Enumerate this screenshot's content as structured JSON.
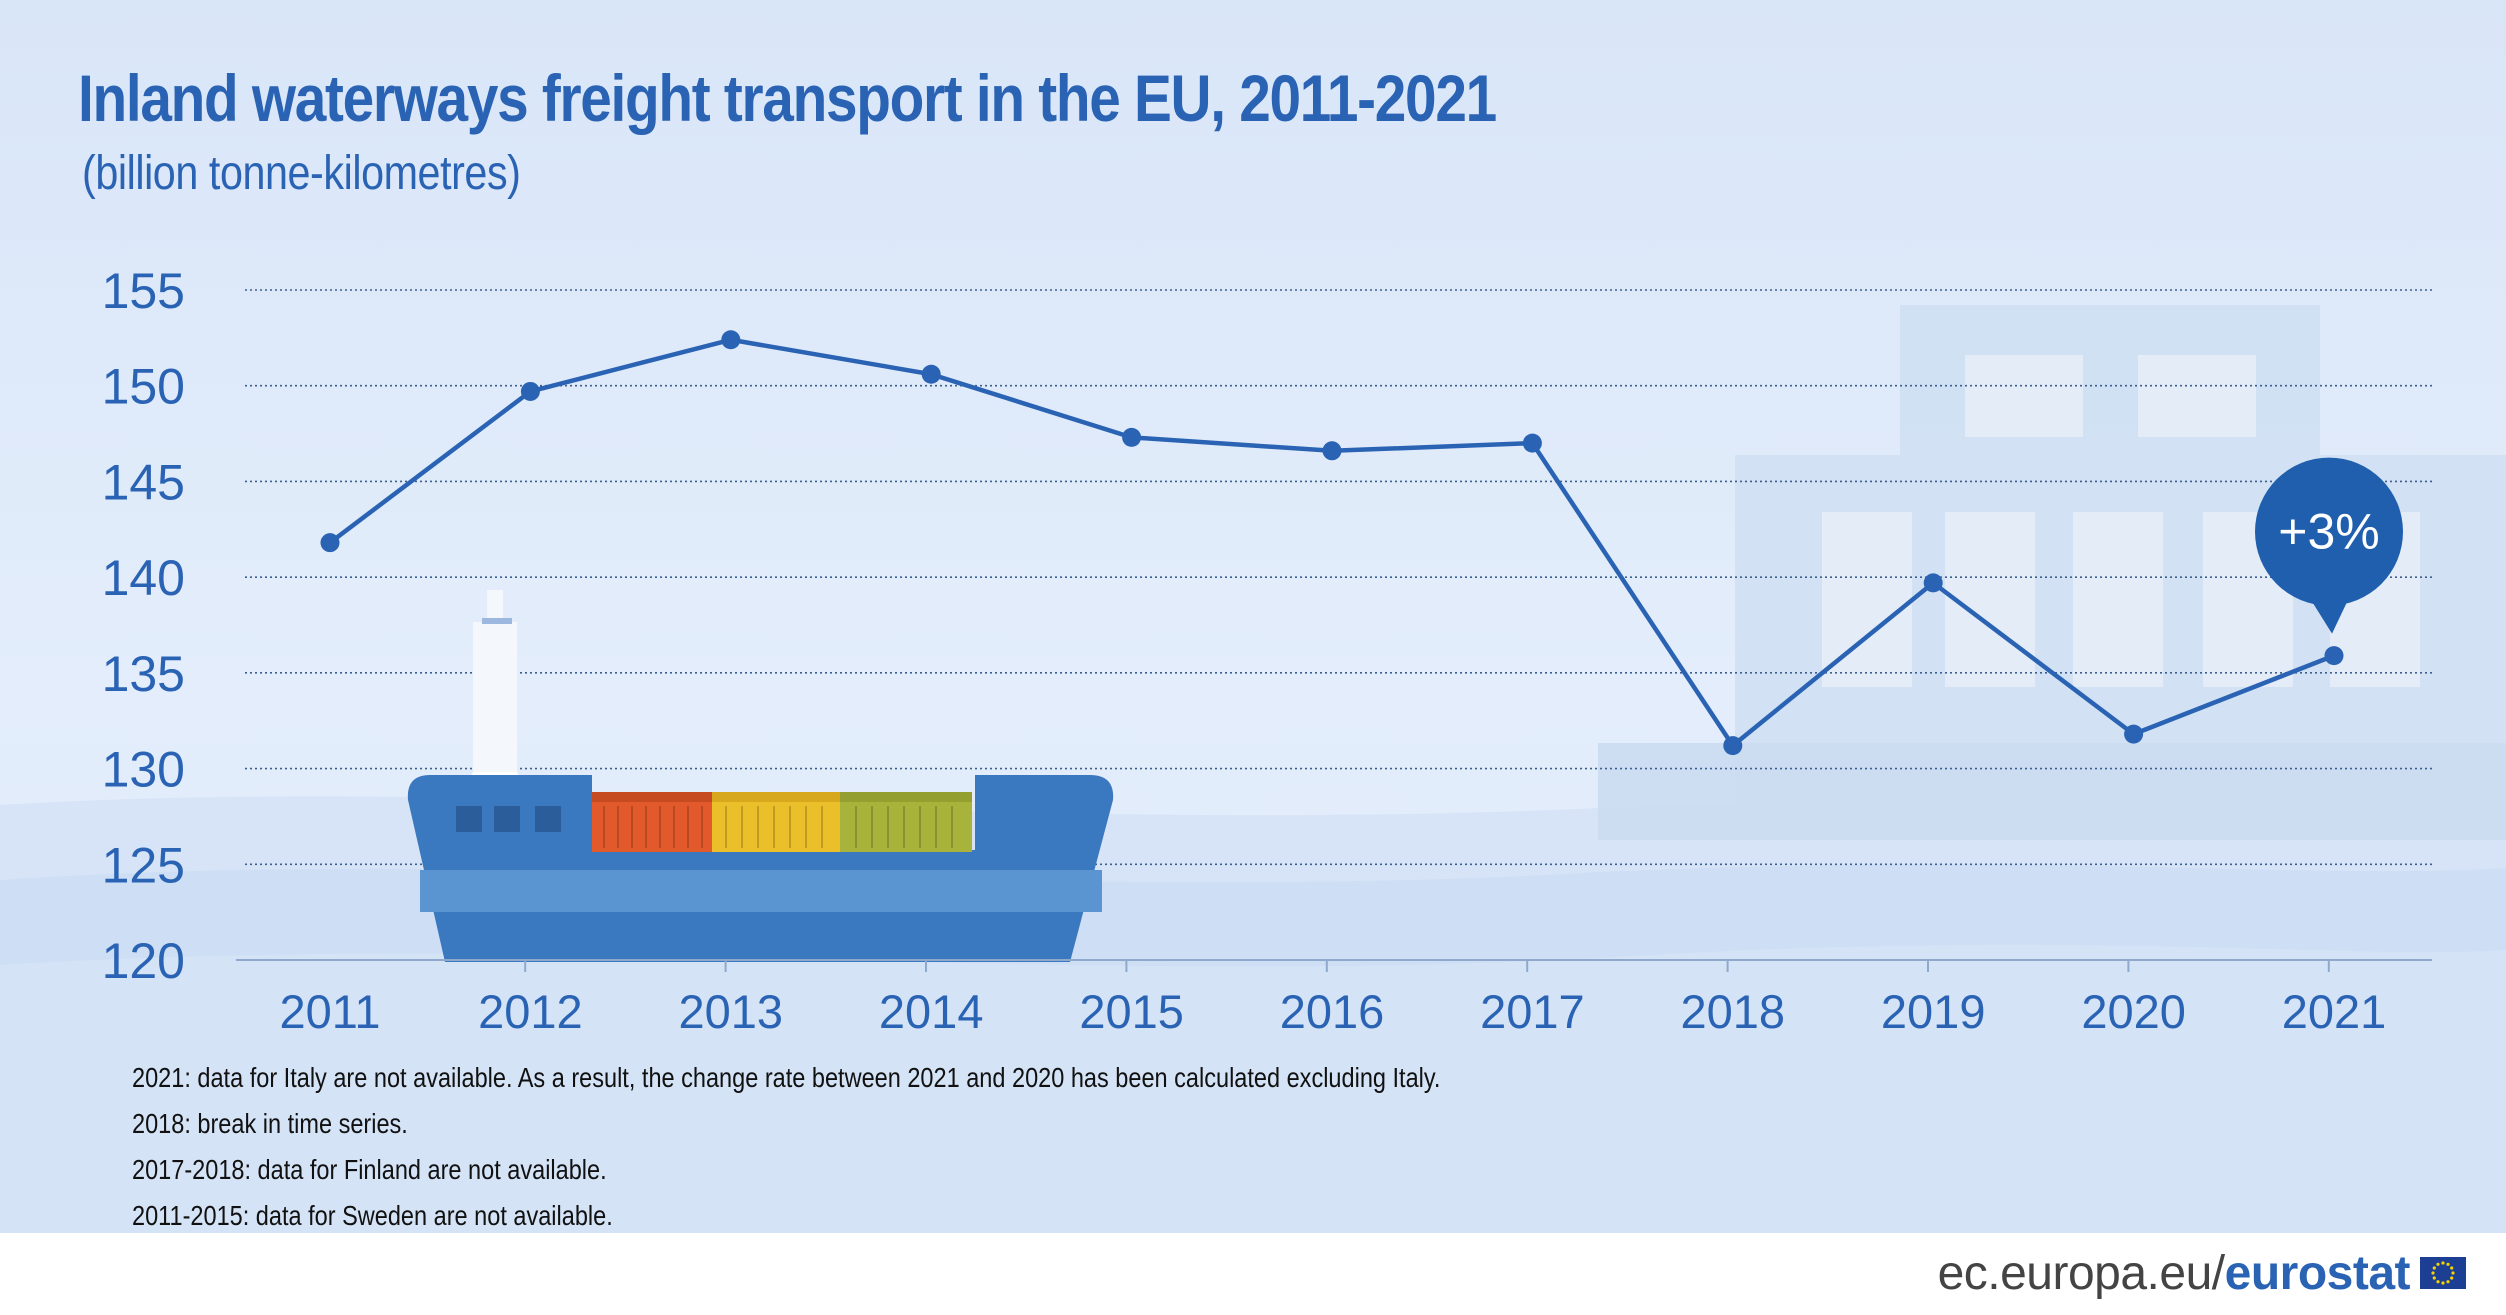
{
  "title": "Inland waterways freight transport in the EU, 2011-2021",
  "subtitle": "(billion tonne-kilometres)",
  "chart_data": {
    "type": "line",
    "title": "Inland waterways freight transport in the EU, 2011-2021",
    "subtitle": "(billion tonne-kilometres)",
    "xlabel": "",
    "ylabel": "",
    "categories": [
      "2011",
      "2012",
      "2013",
      "2014",
      "2015",
      "2016",
      "2017",
      "2018",
      "2019",
      "2020",
      "2021"
    ],
    "series": [
      {
        "values": [
          141.8,
          149.7,
          152.4,
          150.6,
          147.3,
          146.6,
          147.0,
          131.2,
          139.7,
          131.8,
          135.9
        ]
      }
    ],
    "yticks": [
      120,
      125,
      130,
      135,
      140,
      145,
      150,
      155
    ],
    "ylim": [
      120,
      155
    ],
    "grid": true,
    "legend": "none",
    "annotation": {
      "category": "2021",
      "text": "+3%"
    },
    "line_color": "#2a63b4"
  },
  "notes": [
    "2021: data for Italy are not available. As a result, the change rate between 2021 and 2020 has been calculated excluding Italy.",
    "2018: break in time series.",
    "2017-2018: data for Finland are not available.",
    "2011-2015: data for Sweden are not available."
  ],
  "footer": {
    "site": "ec.europa.eu/",
    "brand": "eurostat"
  },
  "colors": {
    "primary": "#2a63b4",
    "background": "#dfeaf9",
    "ship": "#3a78bf"
  }
}
